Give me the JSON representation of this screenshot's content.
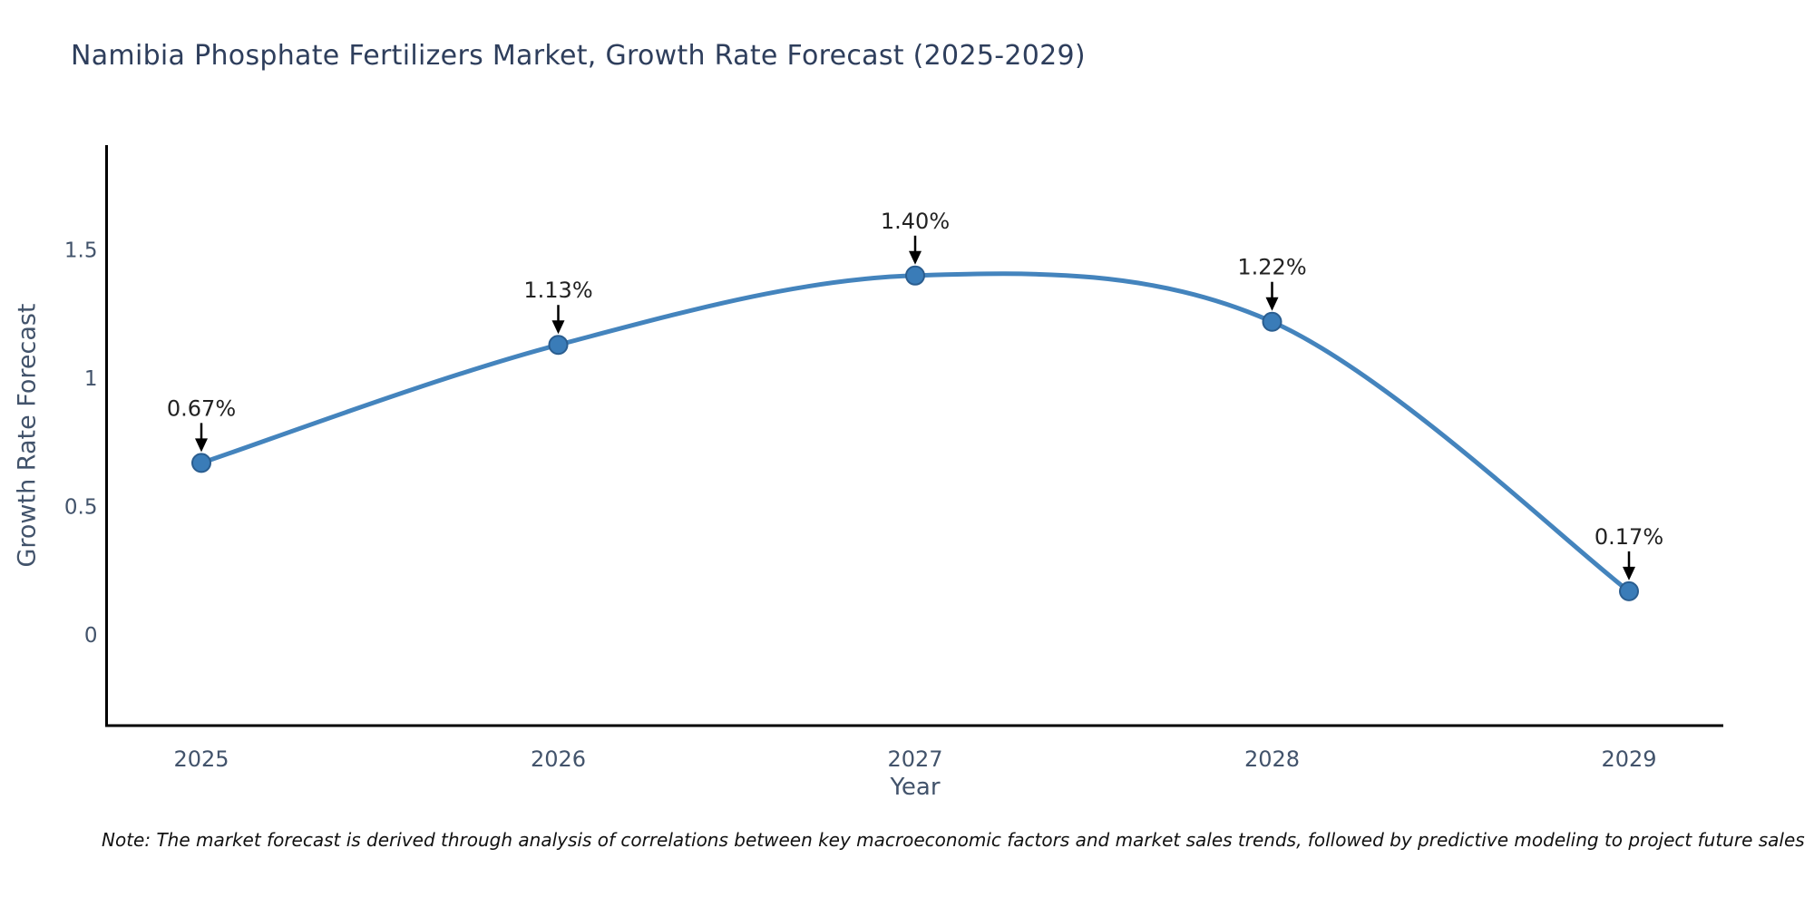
{
  "page": {
    "background": "#ffffff"
  },
  "title": {
    "text": "Namibia Phosphate Fertilizers Market, Growth Rate Forecast (2025-2029)",
    "color": "#2e3e5c"
  },
  "note": {
    "text": "Note: The market forecast is derived through analysis of correlations between key macroeconomic factors and market sales trends, followed by predictive modeling to project future sales"
  },
  "chart_data": {
    "type": "line",
    "title": "Namibia Phosphate Fertilizers Market, Growth Rate Forecast (2025-2029)",
    "xlabel": "Year",
    "ylabel": "Growth Rate Forecast",
    "categories": [
      "2025",
      "2026",
      "2027",
      "2028",
      "2029"
    ],
    "values": [
      0.67,
      1.13,
      1.4,
      1.22,
      0.17
    ],
    "point_labels": [
      "0.67%",
      "1.13%",
      "1.40%",
      "1.22%",
      "0.17%"
    ],
    "yticks": [
      {
        "value": 0,
        "label": "0"
      },
      {
        "value": 0.5,
        "label": "0.5"
      },
      {
        "value": 1,
        "label": "1"
      },
      {
        "value": 1.5,
        "label": "1.5"
      }
    ],
    "ylim": [
      -0.36,
      1.93
    ],
    "grid": false,
    "legend": "none",
    "smooth": true,
    "colors": {
      "line": "#4484bd",
      "marker_fill": "#3a7cb8",
      "marker_edge": "#2a5d8f",
      "axis": "#000000",
      "tick_text": "#42536b",
      "axis_label_text": "#42536b",
      "title_text": "#2e3e5c",
      "annotation_text": "#222222",
      "arrow": "#000000"
    }
  }
}
